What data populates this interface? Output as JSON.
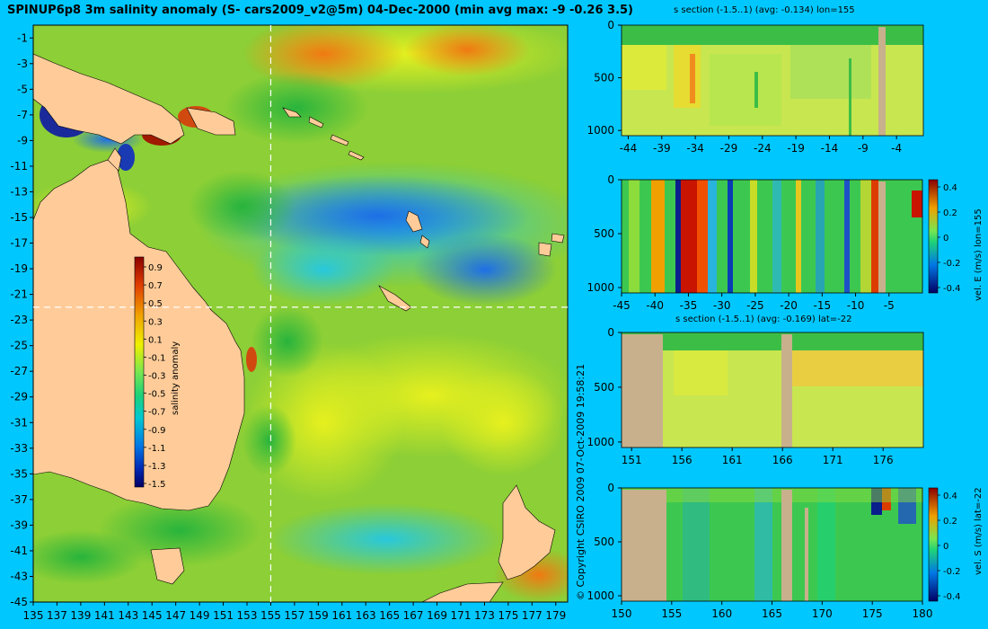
{
  "colors": {
    "background": "#00c8ff",
    "land": "#ffcc99",
    "section_land": "#c8b08c",
    "marker": "#ffffff"
  },
  "map": {
    "title": "SPINUP6p8 3m salinity anomaly (S- cars2009_v2@5m) 04-Dec-2000 (min avg max: -9 -0.26 3.5)",
    "colorbar_label": "salinity anomaly",
    "colorbar_ticks": [
      "0.9",
      "0.7",
      "0.5",
      "0.3",
      "0.1",
      "-0.1",
      "-0.3",
      "-0.5",
      "-0.7",
      "-0.9",
      "-1.1",
      "-1.3",
      "-1.5"
    ],
    "copyright": "© Copyright CSIRO 2009   07-Oct-2009 19:58:21"
  },
  "chart_data": [
    {
      "type": "heatmap",
      "title": "SPINUP6p8 3m salinity anomaly (S- cars2009_v2@5m) 04-Dec-2000 (min avg max: -9 -0.26 3.5)",
      "x_ticks": [
        "135",
        "137",
        "139",
        "141",
        "143",
        "145",
        "147",
        "149",
        "151",
        "153",
        "155",
        "157",
        "159",
        "161",
        "163",
        "165",
        "167",
        "169",
        "171",
        "173",
        "175",
        "177",
        "179"
      ],
      "y_ticks": [
        "-1",
        "-3",
        "-5",
        "-7",
        "-9",
        "-11",
        "-13",
        "-15",
        "-17",
        "-19",
        "-21",
        "-23",
        "-25",
        "-27",
        "-29",
        "-31",
        "-33",
        "-35",
        "-37",
        "-39",
        "-41",
        "-43",
        "-45"
      ],
      "xlim": [
        135,
        180
      ],
      "ylim": [
        -45,
        0
      ],
      "section_lines": {
        "lon": 155,
        "lat": -22
      },
      "colorbar": {
        "label": "salinity anomaly",
        "range": [
          -1.5,
          0.9
        ]
      }
    },
    {
      "type": "heatmap",
      "title": "s section (-1.5..1) (avg: -0.134) lon=155",
      "x_ticks": [
        "-44",
        "-39",
        "-34",
        "-29",
        "-24",
        "-19",
        "-14",
        "-9",
        "-4"
      ],
      "y_ticks": [
        "0",
        "500",
        "1000"
      ],
      "xlim": [
        -45,
        0
      ],
      "ylim": [
        1050,
        0
      ]
    },
    {
      "type": "heatmap",
      "title": "",
      "x_ticks": [
        "-45",
        "-40",
        "-35",
        "-30",
        "-25",
        "-20",
        "-15",
        "-10",
        "-5"
      ],
      "y_ticks": [
        "0",
        "500",
        "1000"
      ],
      "xlim": [
        -45,
        0
      ],
      "ylim": [
        1050,
        0
      ],
      "colorbar": {
        "label": "vel. E (m/s) lon=155",
        "ticks": [
          "0.4",
          "0.2",
          "0",
          "-0.2",
          "-0.4"
        ]
      }
    },
    {
      "type": "heatmap",
      "title": "s section (-1.5..1) (avg: -0.169) lat=-22",
      "x_ticks": [
        "151",
        "156",
        "161",
        "166",
        "171",
        "176"
      ],
      "y_ticks": [
        "0",
        "500",
        "1000"
      ],
      "xlim": [
        150,
        180
      ],
      "ylim": [
        1050,
        0
      ]
    },
    {
      "type": "heatmap",
      "title": "",
      "x_ticks": [
        "150",
        "155",
        "160",
        "165",
        "170",
        "175",
        "180"
      ],
      "y_ticks": [
        "0",
        "500",
        "1000"
      ],
      "xlim": [
        150,
        180
      ],
      "ylim": [
        1050,
        0
      ],
      "colorbar": {
        "label": "vel. S (m/s) lat=-22",
        "ticks": [
          "0.4",
          "0.2",
          "0",
          "-0.2",
          "-0.4"
        ]
      }
    }
  ]
}
